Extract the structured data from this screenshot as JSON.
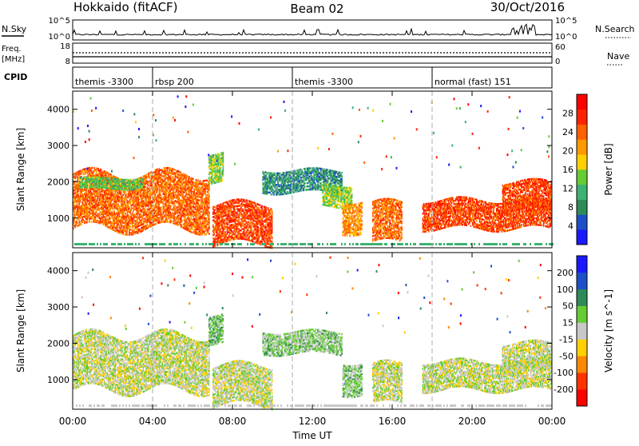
{
  "header": {
    "station": "Hokkaido (fitACF)",
    "beam": "Beam 02",
    "date": "30/Oct/2016"
  },
  "top_panels": {
    "nsky_label": "N.Sky",
    "nsky_ticks": [
      "10^5",
      "10^0"
    ],
    "nsearch_label": "N.Search",
    "nsearch_ticks": [
      "10^5",
      "10^0"
    ],
    "freq_label_1": "Freq.",
    "freq_label_2": "[MHz]",
    "freq_ticks": [
      "18",
      "8"
    ],
    "nave_label": "Nave",
    "nave_ticks": [
      "60",
      "0"
    ],
    "cpid_label": "CPID"
  },
  "cpid_segments": [
    {
      "label": "themis -3300",
      "start_h": 0.0,
      "end_h": 4.0
    },
    {
      "label": "rbsp 200",
      "start_h": 4.0,
      "end_h": 11.0
    },
    {
      "label": "themis -3300",
      "start_h": 11.0,
      "end_h": 18.0
    },
    {
      "label": "normal (fast) 151",
      "start_h": 18.0,
      "end_h": 24.0
    }
  ],
  "x_axis": {
    "label": "Time UT",
    "ticks": [
      "00:00",
      "04:00",
      "08:00",
      "12:00",
      "16:00",
      "20:00",
      "00:00"
    ],
    "range_h": [
      0,
      24
    ]
  },
  "colors": {
    "power": [
      "#1a1aff",
      "#1f4fc7",
      "#2e8b57",
      "#3cb371",
      "#66cc33",
      "#ffd000",
      "#ff9900",
      "#ff6000",
      "#ff2200",
      "#ff0000"
    ],
    "velocity": [
      "#ff0000",
      "#ff3300",
      "#ff8800",
      "#ffd000",
      "#c8c8c8",
      "#66cc33",
      "#2e8b57",
      "#1f4fc7",
      "#1a1aff"
    ]
  },
  "chart_data": [
    {
      "type": "heatmap",
      "name": "power",
      "ylabel": "Slant Range [km]",
      "yticks": [
        "4000",
        "3000",
        "2000",
        "1000"
      ],
      "ylim": [
        180,
        4500
      ],
      "xlim": [
        0,
        24
      ],
      "colorbar_label": "Power [dB]",
      "colorbar_ticks": [
        "28",
        "24",
        "20",
        "16",
        "12",
        "8",
        "4"
      ],
      "crange": [
        0,
        30
      ],
      "echo_regions": [
        {
          "t": [
            0.0,
            6.8
          ],
          "r": [
            700,
            2200
          ],
          "value": 22
        },
        {
          "t": [
            0.3,
            3.5
          ],
          "r": [
            1800,
            2100
          ],
          "value": 12
        },
        {
          "t": [
            6.8,
            7.5
          ],
          "r": [
            2000,
            2800
          ],
          "value": 14
        },
        {
          "t": [
            7.0,
            10.0
          ],
          "r": [
            280,
            1400
          ],
          "value": 24
        },
        {
          "t": [
            9.5,
            13.5
          ],
          "r": [
            1700,
            2300
          ],
          "value": 8
        },
        {
          "t": [
            12.5,
            14.0
          ],
          "r": [
            1300,
            1900
          ],
          "value": 14
        },
        {
          "t": [
            13.5,
            14.5
          ],
          "r": [
            600,
            1500
          ],
          "value": 20
        },
        {
          "t": [
            15.0,
            16.5
          ],
          "r": [
            300,
            1400
          ],
          "value": 22
        },
        {
          "t": [
            17.5,
            24.0
          ],
          "r": [
            700,
            1500
          ],
          "value": 24
        },
        {
          "t": [
            21.5,
            24.0
          ],
          "r": [
            1200,
            2000
          ],
          "value": 24
        }
      ]
    },
    {
      "type": "heatmap",
      "name": "velocity",
      "ylabel": "Slant Range [km]",
      "yticks": [
        "4000",
        "3000",
        "2000",
        "1000"
      ],
      "ylim": [
        180,
        4500
      ],
      "xlim": [
        0,
        24
      ],
      "colorbar_label": "Velocity [m s^-1]",
      "colorbar_ticks": [
        "200",
        "100",
        "50",
        "15",
        "-15",
        "-50",
        "-100",
        "-200"
      ],
      "crange": [
        -250,
        250
      ],
      "echo_regions": [
        {
          "t": [
            0.0,
            6.8
          ],
          "r": [
            700,
            2200
          ],
          "value": 0
        },
        {
          "t": [
            6.8,
            7.5
          ],
          "r": [
            2000,
            2800
          ],
          "value": 60
        },
        {
          "t": [
            7.0,
            10.0
          ],
          "r": [
            280,
            1400
          ],
          "value": 0
        },
        {
          "t": [
            9.5,
            13.5
          ],
          "r": [
            1700,
            2300
          ],
          "value": 40
        },
        {
          "t": [
            13.5,
            14.5
          ],
          "r": [
            600,
            1500
          ],
          "value": 40
        },
        {
          "t": [
            15.0,
            16.5
          ],
          "r": [
            300,
            1400
          ],
          "value": 0
        },
        {
          "t": [
            17.5,
            24.0
          ],
          "r": [
            700,
            1500
          ],
          "value": 0
        },
        {
          "t": [
            21.5,
            24.0
          ],
          "r": [
            1200,
            2000
          ],
          "value": 0
        }
      ]
    }
  ]
}
